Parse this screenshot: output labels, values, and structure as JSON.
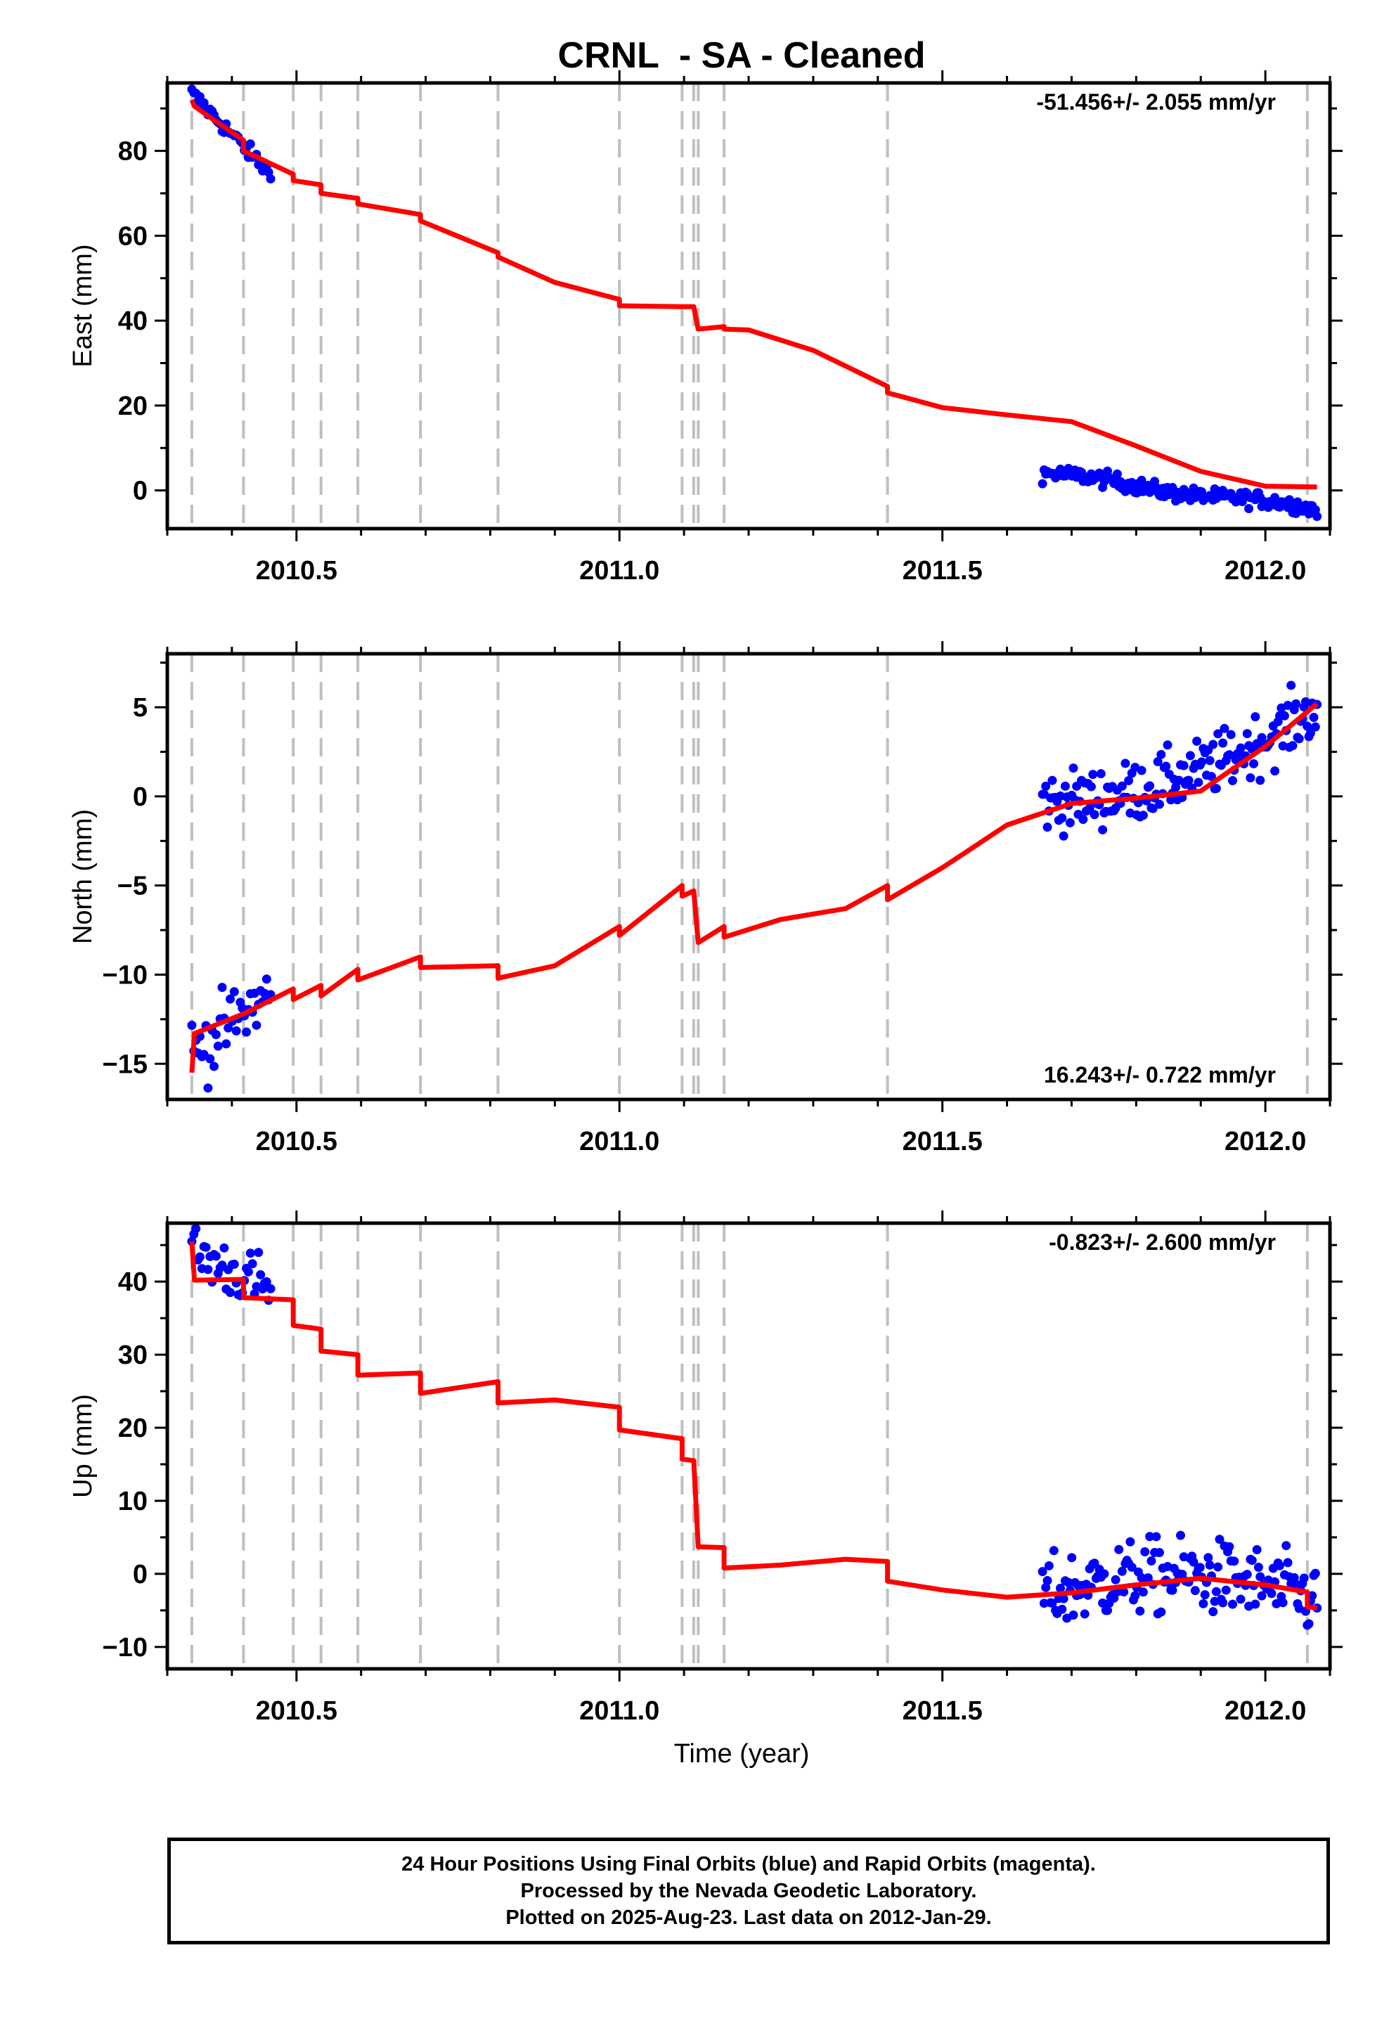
{
  "chart_data": {
    "title": "CRNL  - SA - Cleaned",
    "type": "scatter",
    "xlabel": "Time (year)",
    "x_tick_labels": [
      "2010.5",
      "2011.0",
      "2011.5",
      "2012.0"
    ],
    "xlim": [
      2010.3,
      2012.1
    ],
    "grid": false,
    "step_lines": [
      2010.338,
      2010.418,
      2010.495,
      2010.538,
      2010.595,
      2010.692,
      2010.812,
      2011.0,
      2011.097,
      2011.115,
      2011.122,
      2011.162,
      2011.415,
      2012.065
    ],
    "colors": {
      "final_orbits": "#0000ff",
      "model_fit": "#ff0000",
      "step_lines": "#bfbfbf"
    },
    "panels": [
      {
        "component": "east",
        "ylabel": "East (mm)",
        "ylim": [
          -9,
          96
        ],
        "y_ticks": [
          0,
          20,
          40,
          60,
          80
        ],
        "y_tick_labels": [
          "0",
          "20",
          "40",
          "60",
          "80"
        ],
        "rate": "-51.456+/- 2.055 mm/yr",
        "rate_position": "top-right",
        "model": [
          [
            2010.338,
            92.0
          ],
          [
            2010.342,
            90.5
          ],
          [
            2010.37,
            87.5
          ],
          [
            2010.418,
            82.5
          ],
          [
            2010.418,
            80.0
          ],
          [
            2010.495,
            74.5
          ],
          [
            2010.495,
            73.0
          ],
          [
            2010.538,
            72.0
          ],
          [
            2010.538,
            70.0
          ],
          [
            2010.595,
            68.8
          ],
          [
            2010.595,
            67.5
          ],
          [
            2010.692,
            65.0
          ],
          [
            2010.692,
            63.5
          ],
          [
            2010.812,
            56.0
          ],
          [
            2010.812,
            55.0
          ],
          [
            2010.9,
            49.0
          ],
          [
            2011.0,
            45.0
          ],
          [
            2011.0,
            43.5
          ],
          [
            2011.097,
            43.3
          ],
          [
            2011.115,
            43.3
          ],
          [
            2011.122,
            38.0
          ],
          [
            2011.162,
            38.6
          ],
          [
            2011.162,
            38.0
          ],
          [
            2011.2,
            37.8
          ],
          [
            2011.3,
            33.0
          ],
          [
            2011.415,
            24.5
          ],
          [
            2011.415,
            23.0
          ],
          [
            2011.5,
            19.5
          ],
          [
            2011.6,
            17.8
          ],
          [
            2011.7,
            16.2
          ],
          [
            2011.8,
            10.5
          ],
          [
            2011.9,
            4.5
          ],
          [
            2012.0,
            1.0
          ],
          [
            2012.08,
            0.8
          ]
        ],
        "segments": [
          {
            "t0": 2010.338,
            "t1": 2010.46,
            "count": 40,
            "y0": 93.5,
            "y1": 74.5,
            "noise": 1.4
          },
          {
            "t0": 2011.655,
            "t1": 2012.08,
            "count": 170,
            "y0": 4.0,
            "y1": -4.5,
            "noise": 1.3,
            "wiggle": 0.6
          }
        ]
      },
      {
        "component": "north",
        "ylabel": "North (mm)",
        "ylim": [
          -17,
          8
        ],
        "y_ticks": [
          -15,
          -10,
          -5,
          0,
          5
        ],
        "y_tick_labels": [
          "−15",
          "−10",
          "−5",
          "0",
          "5"
        ],
        "rate": "16.243+/- 0.722 mm/yr",
        "rate_position": "bottom-right",
        "model": [
          [
            2010.338,
            -15.5
          ],
          [
            2010.342,
            -13.3
          ],
          [
            2010.418,
            -12.2
          ],
          [
            2010.495,
            -10.8
          ],
          [
            2010.495,
            -11.4
          ],
          [
            2010.538,
            -10.6
          ],
          [
            2010.538,
            -11.2
          ],
          [
            2010.595,
            -9.7
          ],
          [
            2010.595,
            -10.3
          ],
          [
            2010.692,
            -9.0
          ],
          [
            2010.692,
            -9.6
          ],
          [
            2010.812,
            -9.5
          ],
          [
            2010.812,
            -10.2
          ],
          [
            2010.9,
            -9.5
          ],
          [
            2011.0,
            -7.3
          ],
          [
            2011.0,
            -7.8
          ],
          [
            2011.097,
            -5.0
          ],
          [
            2011.097,
            -5.6
          ],
          [
            2011.115,
            -5.3
          ],
          [
            2011.122,
            -8.2
          ],
          [
            2011.162,
            -7.3
          ],
          [
            2011.162,
            -7.9
          ],
          [
            2011.25,
            -6.9
          ],
          [
            2011.35,
            -6.3
          ],
          [
            2011.415,
            -5.0
          ],
          [
            2011.415,
            -5.8
          ],
          [
            2011.5,
            -4.0
          ],
          [
            2011.6,
            -1.6
          ],
          [
            2011.7,
            -0.4
          ],
          [
            2011.8,
            -0.1
          ],
          [
            2011.9,
            0.3
          ],
          [
            2012.0,
            2.8
          ],
          [
            2012.08,
            5.2
          ]
        ],
        "segments": [
          {
            "t0": 2010.338,
            "t1": 2010.46,
            "count": 40,
            "y0": -14.5,
            "y1": -11.0,
            "noise": 1.4
          },
          {
            "t0": 2011.655,
            "t1": 2012.08,
            "count": 170,
            "y0": -0.3,
            "y1": 5.0,
            "noise": 1.2,
            "curve": 2.0
          }
        ]
      },
      {
        "component": "up",
        "ylabel": "Up (mm)",
        "ylim": [
          -13,
          48
        ],
        "y_ticks": [
          -10,
          0,
          10,
          20,
          30,
          40
        ],
        "y_tick_labels": [
          "−10",
          "0",
          "10",
          "20",
          "30",
          "40"
        ],
        "rate": "-0.823+/- 2.600 mm/yr",
        "rate_position": "top-right",
        "model": [
          [
            2010.338,
            45.5
          ],
          [
            2010.342,
            40.2
          ],
          [
            2010.418,
            40.3
          ],
          [
            2010.418,
            37.8
          ],
          [
            2010.495,
            37.5
          ],
          [
            2010.495,
            34.0
          ],
          [
            2010.538,
            33.5
          ],
          [
            2010.538,
            30.5
          ],
          [
            2010.595,
            30.0
          ],
          [
            2010.595,
            27.2
          ],
          [
            2010.692,
            27.5
          ],
          [
            2010.692,
            24.7
          ],
          [
            2010.812,
            26.3
          ],
          [
            2010.812,
            23.4
          ],
          [
            2010.9,
            23.8
          ],
          [
            2011.0,
            22.8
          ],
          [
            2011.0,
            19.7
          ],
          [
            2011.097,
            18.5
          ],
          [
            2011.097,
            15.7
          ],
          [
            2011.115,
            15.5
          ],
          [
            2011.122,
            3.7
          ],
          [
            2011.162,
            3.6
          ],
          [
            2011.162,
            0.8
          ],
          [
            2011.25,
            1.2
          ],
          [
            2011.35,
            2.0
          ],
          [
            2011.415,
            1.7
          ],
          [
            2011.415,
            -1.0
          ],
          [
            2011.5,
            -2.2
          ],
          [
            2011.6,
            -3.2
          ],
          [
            2011.7,
            -2.6
          ],
          [
            2011.8,
            -1.5
          ],
          [
            2011.9,
            -0.6
          ],
          [
            2012.0,
            -1.5
          ],
          [
            2012.065,
            -2.5
          ],
          [
            2012.065,
            -4.5
          ],
          [
            2012.08,
            -4.7
          ]
        ],
        "segments": [
          {
            "t0": 2010.338,
            "t1": 2010.46,
            "count": 40,
            "y0": 44.0,
            "y1": 39.0,
            "noise": 2.8
          },
          {
            "t0": 2011.655,
            "t1": 2012.08,
            "count": 170,
            "y0": -3.0,
            "y1": -3.5,
            "noise": 3.6,
            "hump": 3.0
          }
        ]
      }
    ]
  },
  "footer": {
    "line1": "24 Hour Positions Using Final Orbits (blue) and Rapid Orbits (magenta).",
    "line2": "Processed by the Nevada Geodetic Laboratory.",
    "line3": "Plotted on 2025-Aug-23. Last data on 2012-Jan-29."
  }
}
